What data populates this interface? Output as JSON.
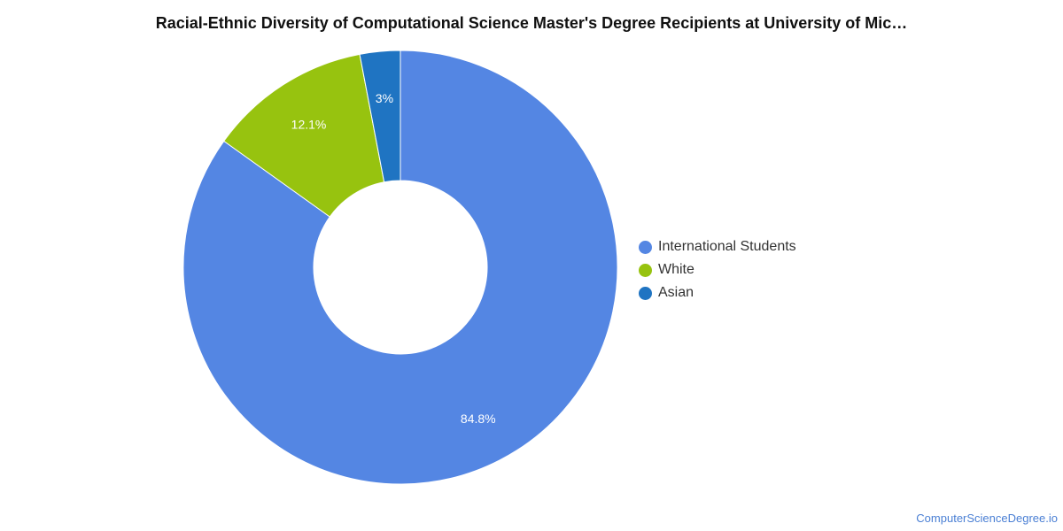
{
  "chart_data": {
    "type": "pie",
    "title": "Racial-Ethnic Diversity of Computational Science Master's Degree Recipients at University of Mic…",
    "slices": [
      {
        "name": "International Students",
        "value": 84.8,
        "label": "84.8%",
        "color": "#5486e3"
      },
      {
        "name": "White",
        "value": 12.1,
        "label": "12.1%",
        "color": "#97c30f"
      },
      {
        "name": "Asian",
        "value": 3.0,
        "label": "3%",
        "color": "#1f74c2"
      }
    ],
    "legend_position": "right",
    "donut": true
  },
  "footer": {
    "source": "ComputerScienceDegree.io"
  }
}
